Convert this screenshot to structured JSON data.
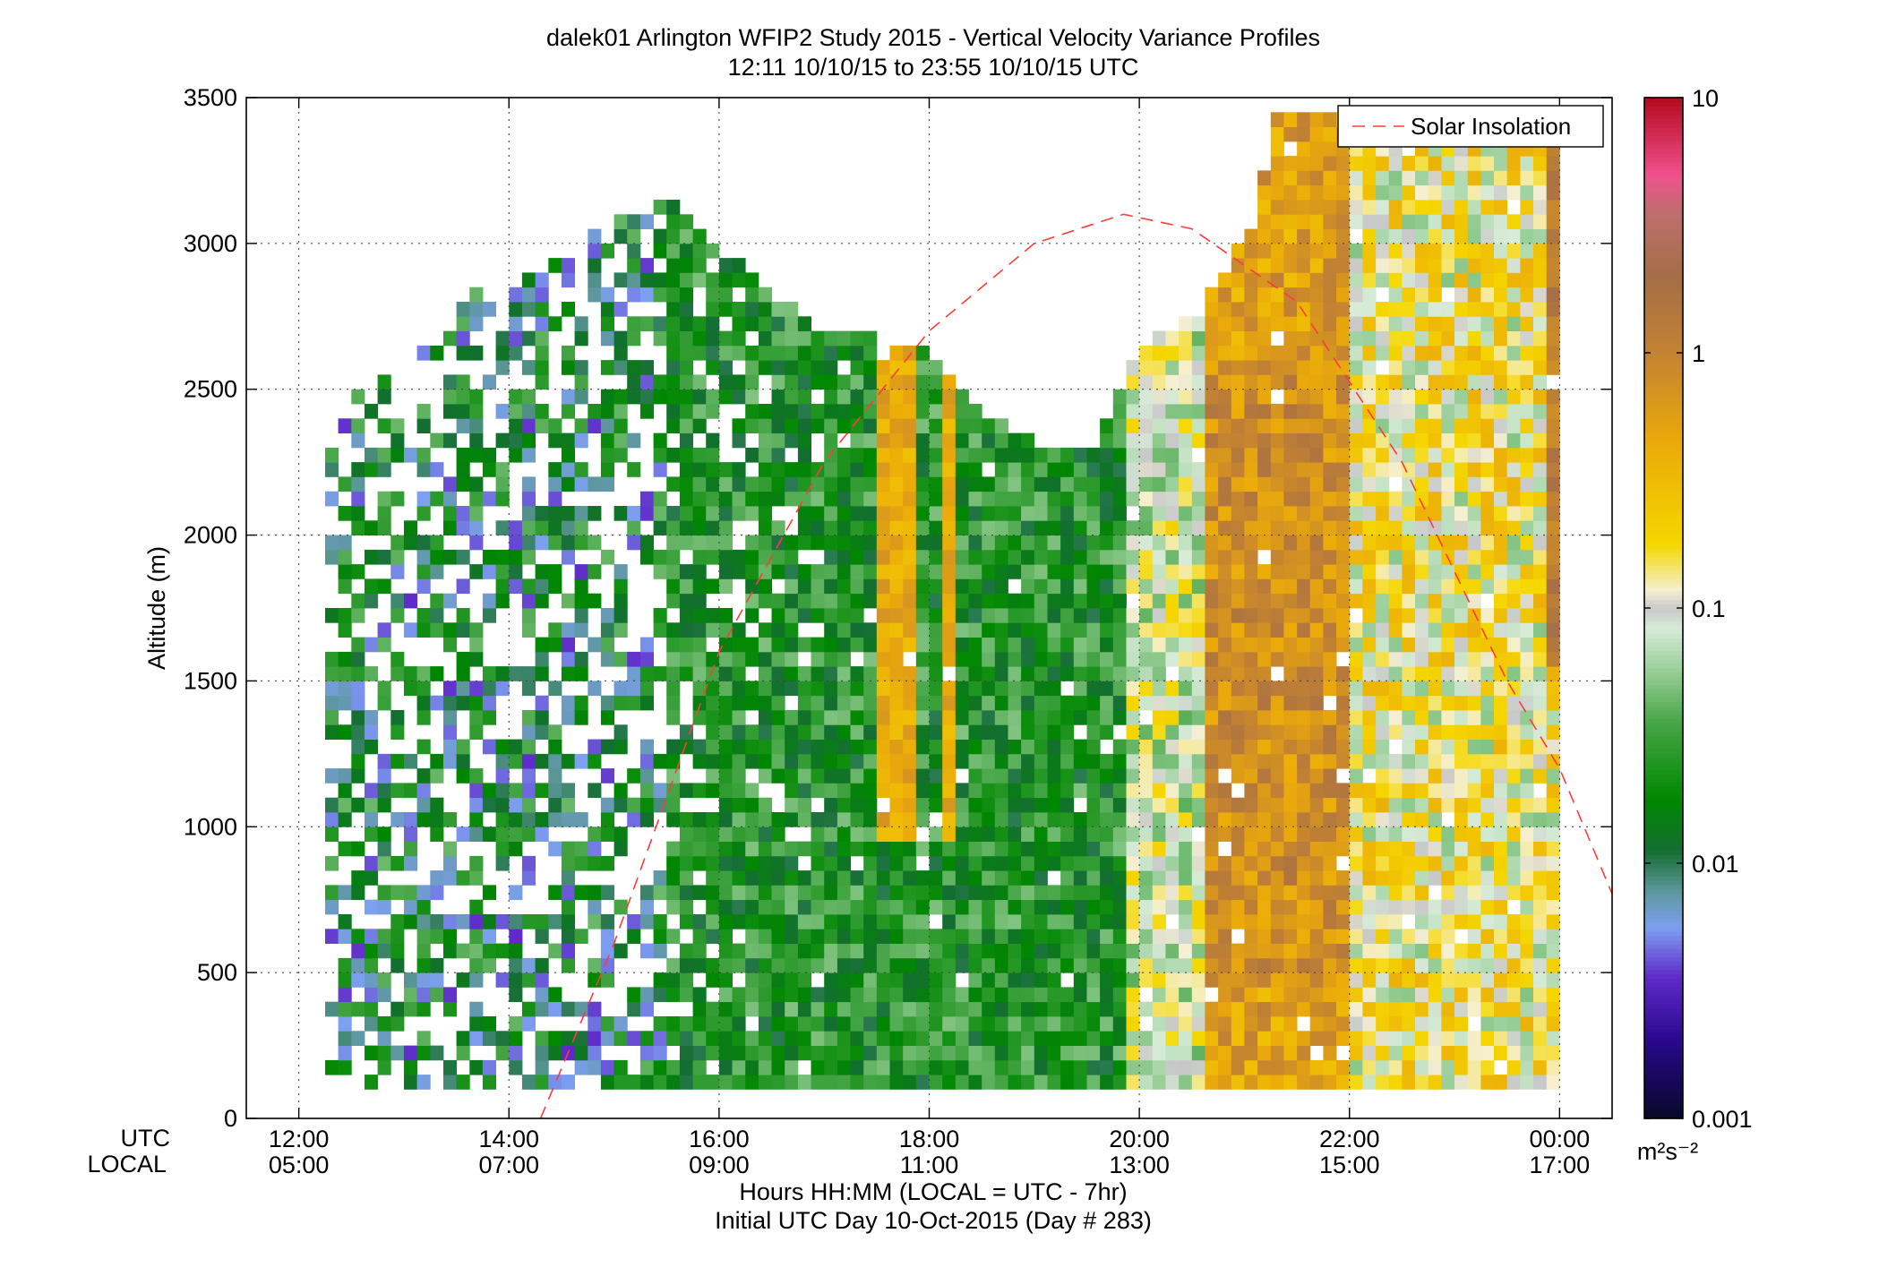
{
  "title_line1": "dalek01 Arlington WFIP2 Study 2015 - Vertical Velocity Variance Profiles",
  "title_line2": "12:11 10/10/15 to 23:55 10/10/15  UTC",
  "xlabel_line1": "Hours HH:MM  (LOCAL = UTC - 7hr)",
  "xlabel_line2": "Initial UTC Day 10-Oct-2015 (Day # 283)",
  "ylabel": "Altitude (m)",
  "row_label_utc": "UTC",
  "row_label_local": "LOCAL",
  "colorbar_unit": "m²s⁻²",
  "legend_label": "Solar Insolation",
  "colors": {
    "solar_line": "#ff3b3b",
    "grid": "#444444"
  },
  "chart_data": {
    "type": "heatmap",
    "x_label": "Hours HH:MM  (LOCAL = UTC - 7hr)",
    "y_label": "Altitude (m)",
    "xlim_utc_hours": [
      11.5,
      24.5
    ],
    "ylim": [
      0,
      3500
    ],
    "x_ticks_utc": [
      "12:00",
      "14:00",
      "16:00",
      "18:00",
      "20:00",
      "22:00",
      "00:00"
    ],
    "x_ticks_local": [
      "05:00",
      "07:00",
      "09:00",
      "11:00",
      "13:00",
      "15:00",
      "17:00"
    ],
    "y_ticks": [
      "0",
      "500",
      "1000",
      "1500",
      "2000",
      "2500",
      "3000",
      "3500"
    ],
    "colorbar": {
      "scale": "log",
      "range": [
        0.001,
        10
      ],
      "ticks": [
        "0.001",
        "0.01",
        "0.1",
        "1",
        "10"
      ]
    },
    "max_data_height_m": [
      [
        12.25,
        2450
      ],
      [
        13.0,
        2550
      ],
      [
        13.5,
        2800
      ],
      [
        14.0,
        2850
      ],
      [
        14.5,
        2950
      ],
      [
        15.0,
        3100
      ],
      [
        15.5,
        3150
      ],
      [
        16.0,
        2950
      ],
      [
        16.5,
        2800
      ],
      [
        17.0,
        2700
      ],
      [
        17.5,
        2650
      ],
      [
        18.0,
        2600
      ],
      [
        18.5,
        2400
      ],
      [
        19.0,
        2300
      ],
      [
        19.5,
        2300
      ],
      [
        20.0,
        2650
      ],
      [
        20.5,
        2750
      ],
      [
        21.0,
        3050
      ],
      [
        21.25,
        3450
      ],
      [
        24.0,
        3450
      ]
    ],
    "regimes": [
      {
        "utc_start": 12.2,
        "utc_end": 15.5,
        "description_level": "sparse mixed 0.003-0.1"
      },
      {
        "utc_start": 15.5,
        "utc_end": 19.8,
        "description_level": "0.01-0.05 with 0.1-0.4 streaks"
      },
      {
        "utc_start": 19.8,
        "utc_end": 20.6,
        "description_level": "0.05-0.2"
      },
      {
        "utc_start": 20.6,
        "utc_end": 22.0,
        "description_level": "0.3-1.5 peak"
      },
      {
        "utc_start": 22.0,
        "utc_end": 24.0,
        "description_level": "0.05-0.5"
      }
    ],
    "series": [
      {
        "name": "Solar Insolation",
        "style": "dashed",
        "color": "#ff3b3b",
        "points": [
          [
            14.3,
            0
          ],
          [
            15.0,
            600
          ],
          [
            16.0,
            1600
          ],
          [
            17.0,
            2250
          ],
          [
            18.0,
            2700
          ],
          [
            19.0,
            3000
          ],
          [
            19.85,
            3100
          ],
          [
            20.5,
            3050
          ],
          [
            21.5,
            2800
          ],
          [
            22.5,
            2250
          ],
          [
            23.5,
            1500
          ],
          [
            24.0,
            1200
          ],
          [
            24.5,
            770
          ]
        ]
      }
    ]
  }
}
